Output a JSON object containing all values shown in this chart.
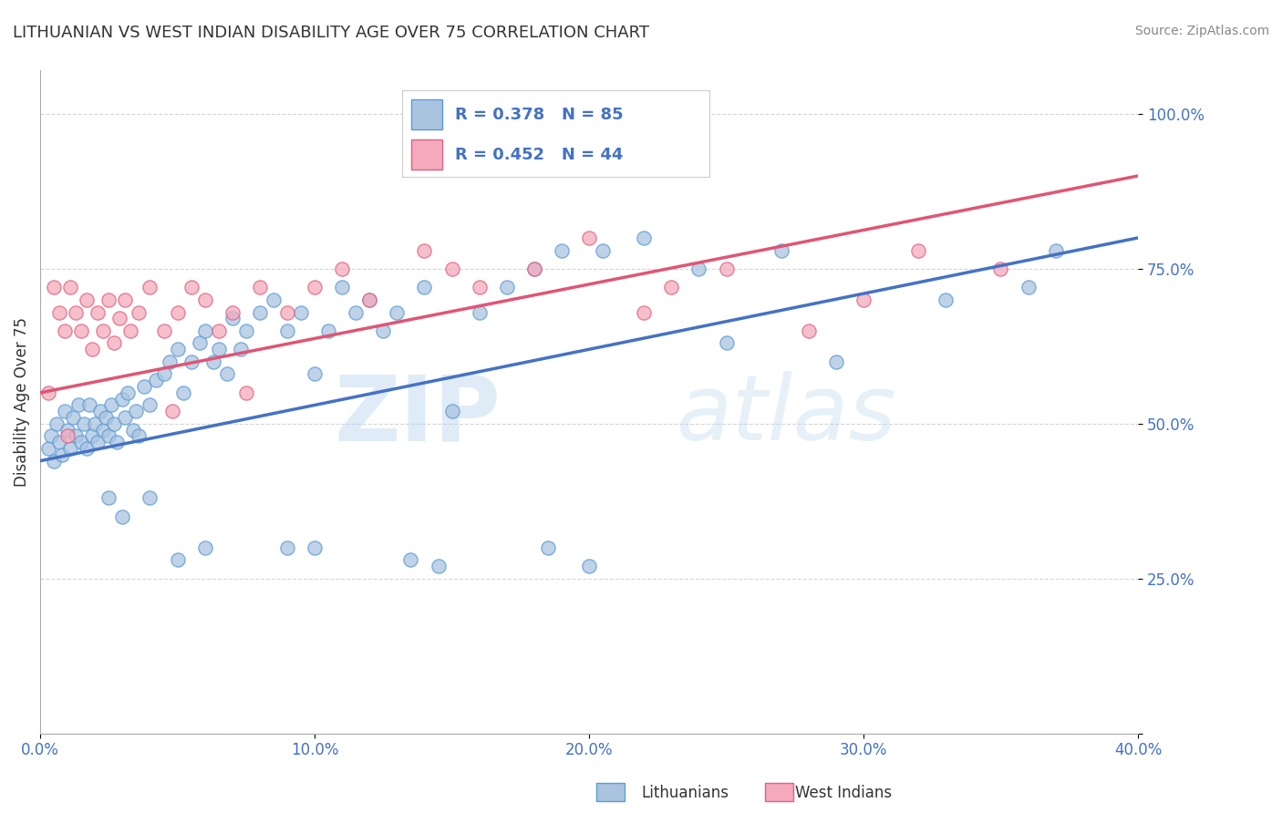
{
  "title": "LITHUANIAN VS WEST INDIAN DISABILITY AGE OVER 75 CORRELATION CHART",
  "source": "Source: ZipAtlas.com",
  "ylabel": "Disability Age Over 75",
  "xmin": 0.0,
  "xmax": 40.0,
  "ymin": 0.0,
  "ymax": 107.0,
  "blue_R": 0.378,
  "blue_N": 85,
  "pink_R": 0.452,
  "pink_N": 44,
  "blue_color": "#aac4e0",
  "blue_edge_color": "#5b9bd5",
  "pink_color": "#f4aabc",
  "pink_edge_color": "#e06080",
  "blue_line_color": "#4472c4",
  "pink_line_color": "#e05575",
  "legend_label_blue": "Lithuanians",
  "legend_label_pink": "West Indians",
  "blue_trend_x0": 0.0,
  "blue_trend_y0": 44.0,
  "blue_trend_x1": 40.0,
  "blue_trend_y1": 80.0,
  "pink_trend_x0": 0.0,
  "pink_trend_y0": 55.0,
  "pink_trend_x1": 40.0,
  "pink_trend_y1": 90.0,
  "blue_x": [
    0.3,
    0.4,
    0.5,
    0.6,
    0.7,
    0.8,
    0.9,
    1.0,
    1.1,
    1.2,
    1.3,
    1.4,
    1.5,
    1.6,
    1.7,
    1.8,
    1.9,
    2.0,
    2.1,
    2.2,
    2.3,
    2.4,
    2.5,
    2.6,
    2.7,
    2.8,
    3.0,
    3.1,
    3.2,
    3.4,
    3.5,
    3.6,
    3.8,
    4.0,
    4.2,
    4.5,
    4.7,
    5.0,
    5.2,
    5.5,
    5.8,
    6.0,
    6.3,
    6.5,
    6.8,
    7.0,
    7.3,
    7.5,
    8.0,
    8.5,
    9.0,
    9.5,
    10.0,
    10.5,
    11.0,
    11.5,
    12.0,
    12.5,
    13.0,
    14.0,
    15.0,
    16.0,
    17.0,
    18.0,
    19.0,
    20.5,
    22.0,
    24.0,
    25.0,
    27.0,
    29.0,
    33.0,
    36.0,
    37.0,
    10.0,
    13.5,
    5.0,
    14.5,
    2.5,
    3.0,
    6.0,
    9.0,
    4.0,
    20.0,
    18.5
  ],
  "blue_y": [
    46,
    48,
    44,
    50,
    47,
    45,
    52,
    49,
    46,
    51,
    48,
    53,
    47,
    50,
    46,
    53,
    48,
    50,
    47,
    52,
    49,
    51,
    48,
    53,
    50,
    47,
    54,
    51,
    55,
    49,
    52,
    48,
    56,
    53,
    57,
    58,
    60,
    62,
    55,
    60,
    63,
    65,
    60,
    62,
    58,
    67,
    62,
    65,
    68,
    70,
    65,
    68,
    58,
    65,
    72,
    68,
    70,
    65,
    68,
    72,
    52,
    68,
    72,
    75,
    78,
    78,
    80,
    75,
    63,
    78,
    60,
    70,
    72,
    78,
    30,
    28,
    28,
    27,
    38,
    35,
    30,
    30,
    38,
    27,
    30
  ],
  "pink_x": [
    0.3,
    0.5,
    0.7,
    0.9,
    1.1,
    1.3,
    1.5,
    1.7,
    1.9,
    2.1,
    2.3,
    2.5,
    2.7,
    2.9,
    3.1,
    3.3,
    3.6,
    4.0,
    4.5,
    5.0,
    5.5,
    6.0,
    6.5,
    7.0,
    8.0,
    9.0,
    10.0,
    11.0,
    12.0,
    14.0,
    15.0,
    16.0,
    18.0,
    20.0,
    23.0,
    25.0,
    28.0,
    30.0,
    32.0,
    35.0,
    1.0,
    4.8,
    7.5,
    22.0
  ],
  "pink_y": [
    55,
    72,
    68,
    65,
    72,
    68,
    65,
    70,
    62,
    68,
    65,
    70,
    63,
    67,
    70,
    65,
    68,
    72,
    65,
    68,
    72,
    70,
    65,
    68,
    72,
    68,
    72,
    75,
    70,
    78,
    75,
    72,
    75,
    80,
    72,
    75,
    65,
    70,
    78,
    75,
    48,
    52,
    55,
    68
  ]
}
